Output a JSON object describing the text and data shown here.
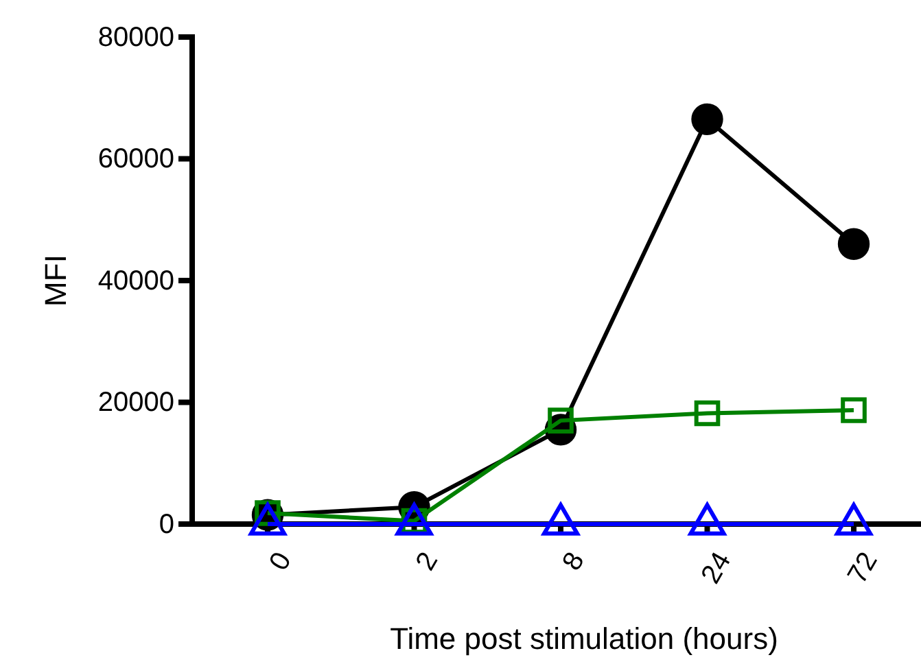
{
  "chart_data": {
    "type": "line",
    "xlabel": "Time post stimulation (hours)",
    "ylabel": "MFI",
    "categories": [
      "0",
      "2",
      "8",
      "24",
      "72"
    ],
    "ylim": [
      0,
      80000
    ],
    "yticks": [
      0,
      20000,
      40000,
      60000,
      80000
    ],
    "grid": false,
    "series": [
      {
        "color": "#000000",
        "marker": "circle",
        "values": [
          1500,
          2800,
          15500,
          66500,
          46000
        ]
      },
      {
        "color": "#008000",
        "marker": "square",
        "values": [
          1800,
          500,
          17000,
          18200,
          18700
        ]
      },
      {
        "color": "#0000ff",
        "marker": "triangle",
        "values": [
          0,
          0,
          0,
          0,
          0
        ]
      }
    ]
  }
}
